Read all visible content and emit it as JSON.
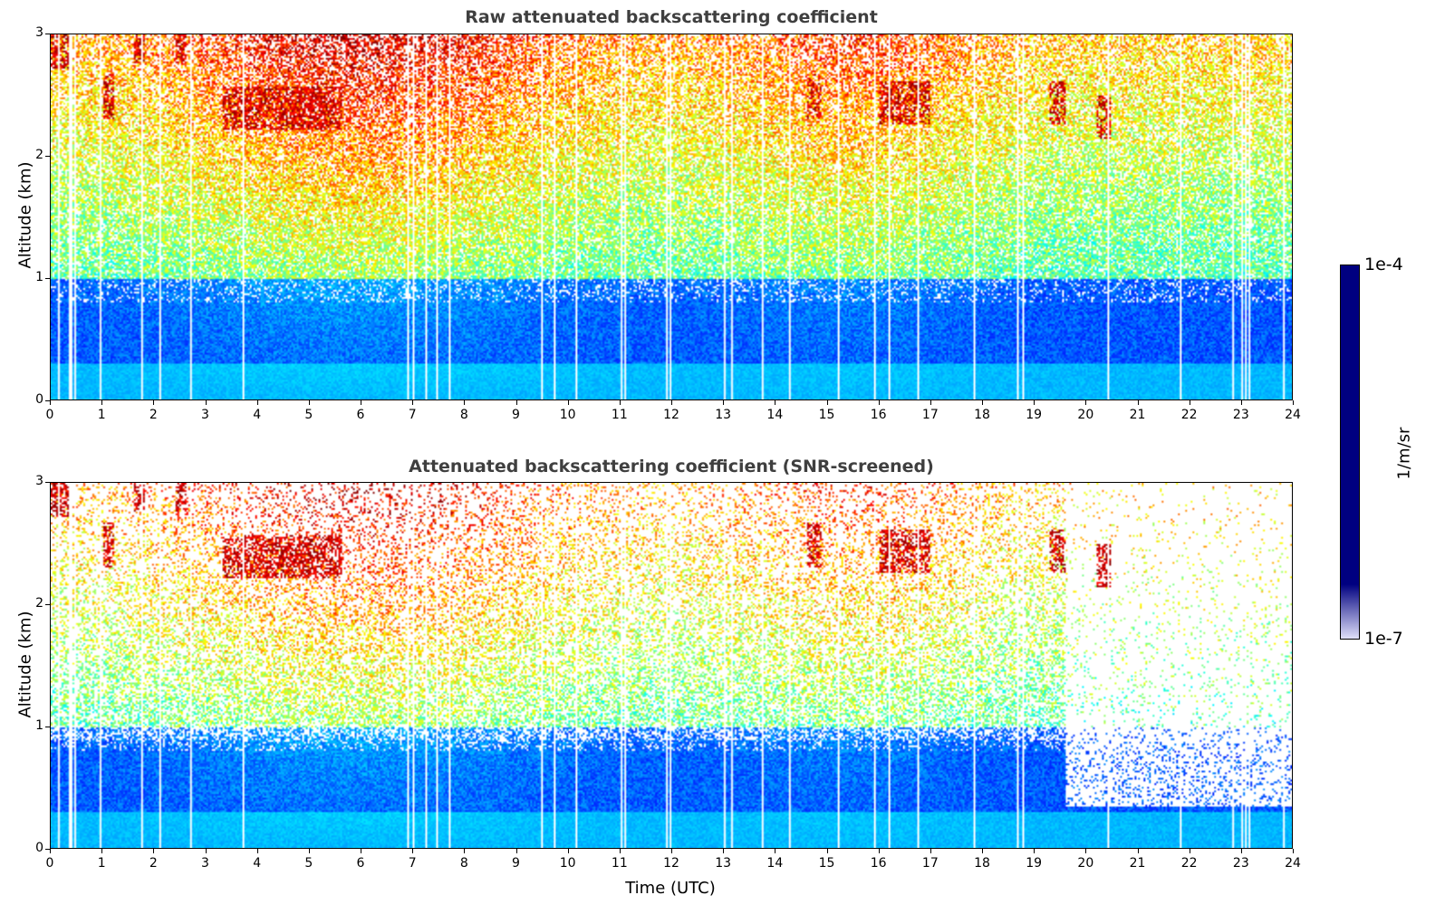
{
  "chart_data": [
    {
      "type": "heatmap",
      "title": "Raw attenuated backscattering coefficient",
      "xlabel": "",
      "ylabel": "Altitude (km)",
      "xlim": [
        0,
        24
      ],
      "ylim": [
        0,
        3
      ],
      "xticks": [
        "0",
        "1",
        "2",
        "3",
        "4",
        "5",
        "6",
        "7",
        "8",
        "9",
        "10",
        "11",
        "12",
        "13",
        "14",
        "15",
        "16",
        "17",
        "18",
        "19",
        "20",
        "21",
        "22",
        "23",
        "24"
      ],
      "yticks": [
        "0",
        "1",
        "2",
        "3"
      ],
      "cloud_layers_km": [
        {
          "t_start": 0.0,
          "t_end": 0.4,
          "alt": 2.9
        },
        {
          "t_start": 1.0,
          "t_end": 1.2,
          "alt": 2.5
        },
        {
          "t_start": 1.6,
          "t_end": 1.8,
          "alt": 2.95
        },
        {
          "t_start": 2.4,
          "t_end": 2.6,
          "alt": 2.95
        },
        {
          "t_start": 3.3,
          "t_end": 5.6,
          "alt": 2.4
        },
        {
          "t_start": 14.6,
          "t_end": 14.9,
          "alt": 2.5
        },
        {
          "t_start": 16.0,
          "t_end": 17.0,
          "alt": 2.45
        },
        {
          "t_start": 19.3,
          "t_end": 19.6,
          "alt": 2.45
        },
        {
          "t_start": 20.2,
          "t_end": 20.5,
          "alt": 2.33
        }
      ]
    },
    {
      "type": "heatmap",
      "title": "Attenuated backscattering coefficient (SNR-screened)",
      "xlabel": "Time (UTC)",
      "ylabel": "Altitude (km)",
      "xlim": [
        0,
        24
      ],
      "ylim": [
        0,
        3
      ],
      "xticks": [
        "0",
        "1",
        "2",
        "3",
        "4",
        "5",
        "6",
        "7",
        "8",
        "9",
        "10",
        "11",
        "12",
        "13",
        "14",
        "15",
        "16",
        "17",
        "18",
        "19",
        "20",
        "21",
        "22",
        "23",
        "24"
      ],
      "yticks": [
        "0",
        "1",
        "2",
        "3"
      ]
    }
  ],
  "colorbar": {
    "label": "1/m/sr",
    "max_label": "1e-4",
    "min_label": "1e-7",
    "range": [
      1e-07,
      0.0001
    ],
    "scale": "log",
    "colormap": "jet"
  },
  "colors": {
    "title": "#3f3f3f",
    "low": "#0010ff",
    "mid": "#00c8ff",
    "high": "#ffe600",
    "max": "#8b0000"
  }
}
